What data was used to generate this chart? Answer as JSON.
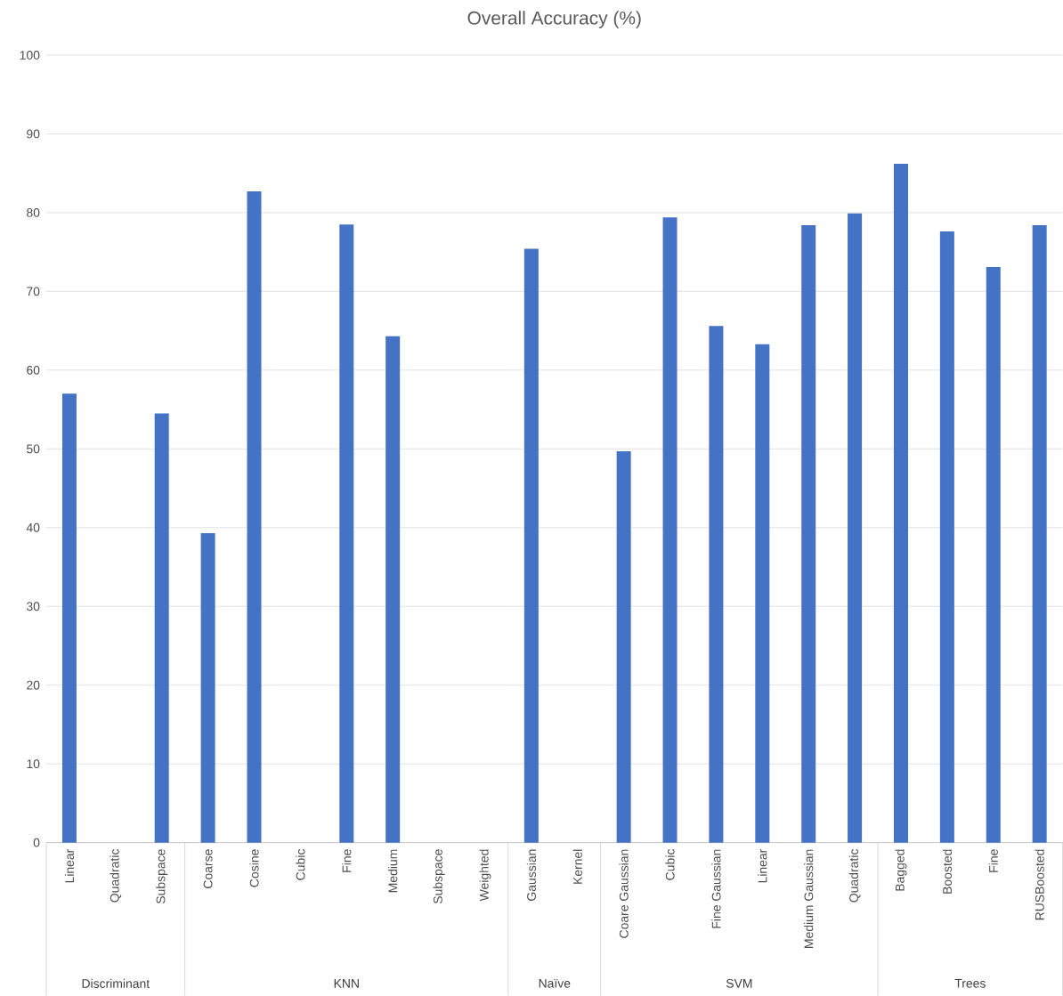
{
  "chart_data": {
    "type": "bar",
    "title": "Overall Accuracy (%)",
    "categories": [
      "Linear",
      "Quadratic",
      "Subspace",
      "Coarse",
      "Cosine",
      "Cubic",
      "Fine",
      "Medium",
      "Subspace",
      "Weighted",
      "Gaussian",
      "Kernel",
      "Coare Gaussian",
      "Cubic",
      "Fine Gaussian",
      "Linear",
      "Medium Gaussian",
      "Quadratic",
      "Bagged",
      "Boosted",
      "Fine",
      "RUSBoosted"
    ],
    "values": [
      57,
      null,
      54.5,
      39.3,
      82.7,
      null,
      78.5,
      64.3,
      null,
      null,
      75.4,
      null,
      49.7,
      79.4,
      65.6,
      63.3,
      78.4,
      79.9,
      86.2,
      77.6,
      73.1,
      78.4
    ],
    "color": "#4472c4",
    "ylim": [
      0,
      100
    ],
    "yticks": [
      0,
      10,
      20,
      30,
      40,
      50,
      60,
      70,
      80,
      90,
      100
    ],
    "grid": "y",
    "annotations": [
      "Discriminant",
      "KNN",
      "Naïve",
      "SVM",
      "Trees"
    ]
  }
}
